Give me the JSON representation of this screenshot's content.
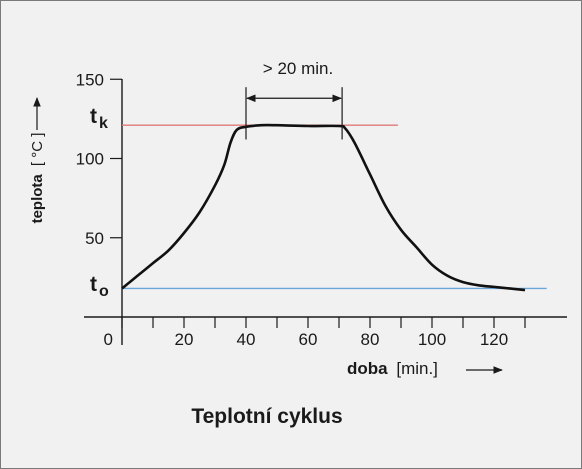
{
  "chart_data": {
    "type": "line",
    "title": "Teplotní cyklus",
    "xlabel_bold": "doba",
    "xlabel_unit": "[min.]",
    "ylabel_bold": "teplota",
    "ylabel_unit": "[ °C ]",
    "xlim": [
      0,
      137
    ],
    "ylim": [
      -20,
      150
    ],
    "x_ticks": [
      0,
      10,
      20,
      30,
      40,
      50,
      60,
      70,
      80,
      90,
      100,
      110,
      120,
      130
    ],
    "x_tick_labels": [
      {
        "value": 0,
        "label": "0"
      },
      {
        "value": 20,
        "label": "20"
      },
      {
        "value": 40,
        "label": "40"
      },
      {
        "value": 60,
        "label": "60"
      },
      {
        "value": 80,
        "label": "80"
      },
      {
        "value": 100,
        "label": "100"
      },
      {
        "value": 120,
        "label": "120"
      }
    ],
    "y_tick_labels": [
      {
        "value": 150,
        "label": "150"
      },
      {
        "value": 100,
        "label": "100"
      },
      {
        "value": 50,
        "label": "50"
      }
    ],
    "series": [
      {
        "color": "#111111",
        "x": [
          0,
          5,
          10,
          15,
          20,
          25,
          30,
          33,
          35,
          37,
          40,
          45,
          50,
          60,
          70,
          72,
          75,
          80,
          85,
          90,
          95,
          100,
          105,
          110,
          115,
          120,
          125,
          130
        ],
        "y": [
          18,
          26,
          34,
          42,
          53,
          66,
          83,
          96,
          110,
          118,
          120,
          121,
          121,
          120.5,
          120.5,
          119,
          110,
          90,
          70,
          55,
          44,
          33,
          26,
          22,
          20,
          19,
          18,
          17
        ]
      }
    ],
    "reference_lines": [
      {
        "label_main": "t",
        "label_sub": "k",
        "y": 121,
        "x_end": 89,
        "color": "#e07878"
      },
      {
        "label_main": "t",
        "label_sub": "o",
        "y": 18,
        "x_end": 137,
        "color": "#6aa6d8"
      }
    ],
    "annotation": {
      "text": "> 20 min.",
      "x_start": 40,
      "x_end": 71,
      "y_arrow": 138,
      "y_top": 145
    }
  }
}
